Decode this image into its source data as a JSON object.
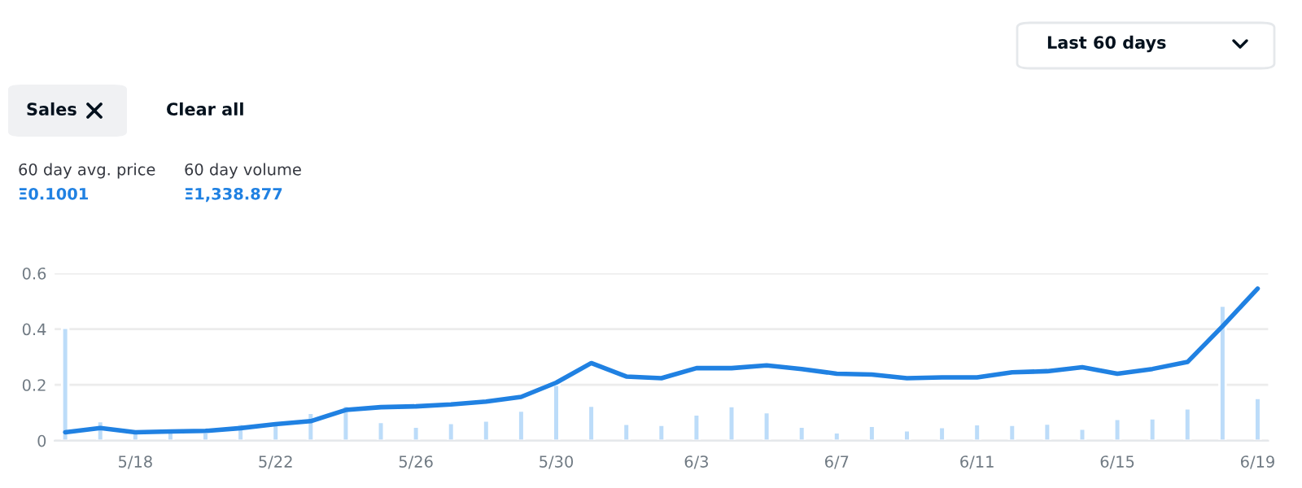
{
  "chart_data": {
    "type": "bar",
    "annotations": [
      "Last 60 days",
      "Sales",
      "Clear all",
      "60 day avg. price",
      "Ξ0.1001",
      "60 day volume",
      "Ξ1,338.877"
    ],
    "categories": [
      null,
      null,
      "5/18",
      null,
      null,
      null,
      "5/22",
      null,
      null,
      null,
      "5/26",
      null,
      null,
      null,
      "5/30",
      null,
      null,
      null,
      "6/3",
      null,
      null,
      null,
      "6/7",
      null,
      null,
      null,
      "6/11",
      null,
      null,
      null,
      "6/15",
      null,
      null,
      null,
      "6/19"
    ],
    "series": [
      {
        "color": "#bcdcf9",
        "values": [
          0.404,
          0.07,
          0.03,
          0.03,
          0.03,
          0.06,
          0.07,
          0.1,
          0.125,
          0.067,
          0.05,
          0.063,
          0.072,
          0.108,
          0.2,
          0.125,
          0.06,
          0.057,
          0.094,
          0.124,
          0.102,
          0.05,
          0.03,
          0.053,
          0.037,
          0.049,
          0.059,
          0.057,
          0.061,
          0.043,
          0.078,
          0.08,
          0.116,
          0.484,
          0.153
        ]
      },
      {
        "type": "line",
        "color": "#2081e2",
        "values": [
          0.03,
          0.045,
          0.03,
          0.033,
          0.035,
          0.045,
          0.059,
          0.07,
          0.11,
          0.12,
          0.123,
          0.13,
          0.14,
          0.157,
          0.208,
          0.278,
          0.23,
          0.224,
          0.26,
          0.26,
          0.27,
          0.257,
          0.24,
          0.237,
          0.224,
          0.227,
          0.227,
          0.245,
          0.249,
          0.263,
          0.24,
          0.257,
          0.282,
          0.41,
          0.545
        ]
      }
    ],
    "ylim": [
      0,
      0.6
    ],
    "yticks": [
      0,
      0.2,
      0.4,
      0.6
    ],
    "grid": "y",
    "legend": false,
    "marker": "none",
    "line_style": "solid"
  }
}
